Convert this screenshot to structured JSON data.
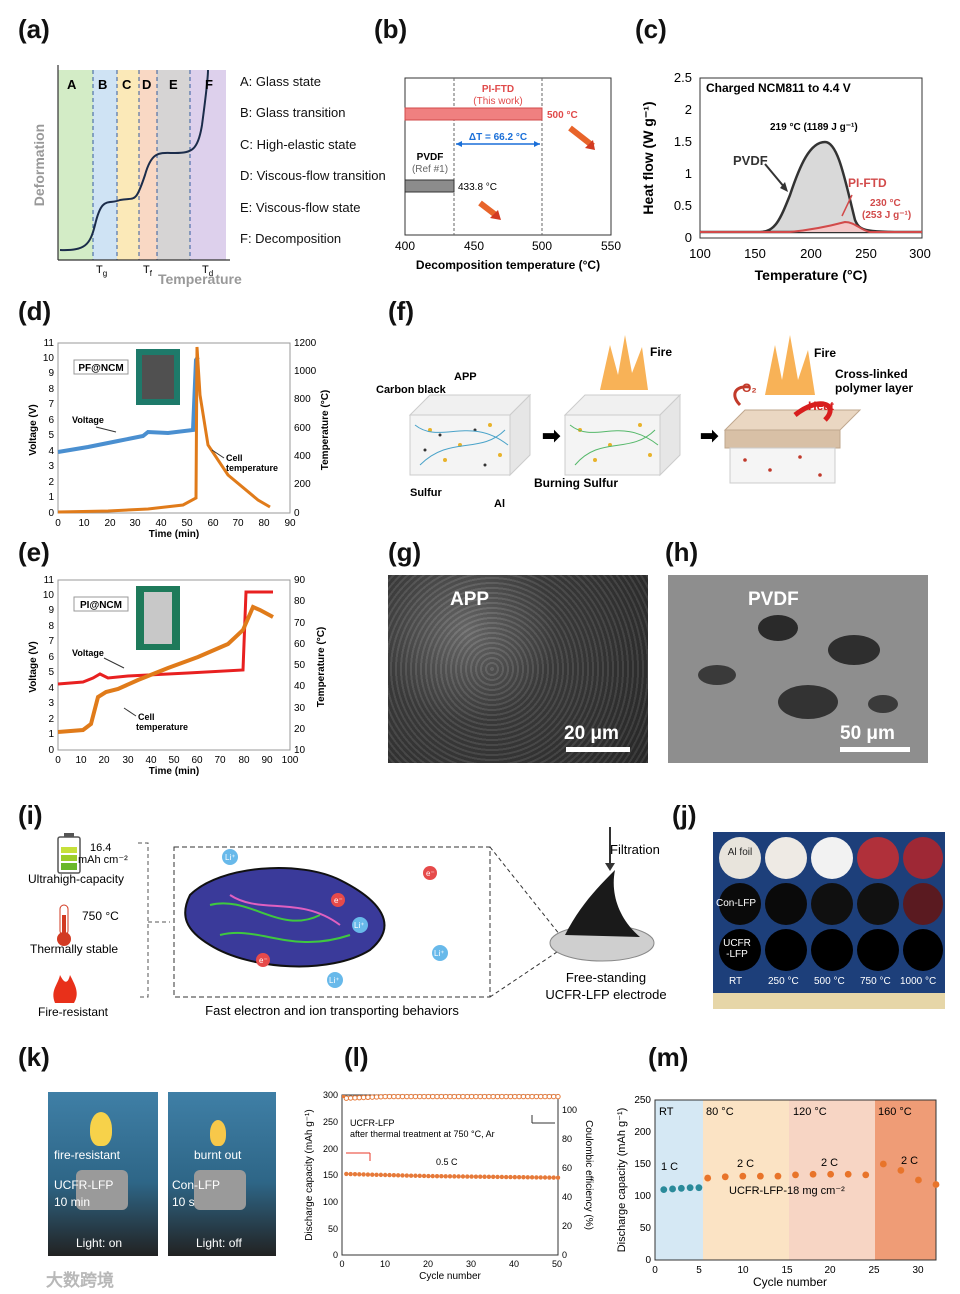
{
  "panels": {
    "a": {
      "label": "(a)",
      "ylabel": "Deformation",
      "xlabel": "Temperature",
      "regions": [
        "A",
        "B",
        "C",
        "D",
        "E",
        "F"
      ],
      "ticks": {
        "tg": "T",
        "tg_sub": "g",
        "tf": "T",
        "tf_sub": "f",
        "td": "T",
        "td_sub": "d"
      },
      "legend": [
        "A: Glass state",
        "B: Glass transition",
        "C: High-elastic state",
        "D: Viscous-flow transition",
        "E: Viscous-flow state",
        "F: Decomposition"
      ]
    },
    "b": {
      "label": "(b)",
      "bar1_title": "PI-FTD",
      "bar1_sub": "(This work)",
      "bar1_value": "500 °C",
      "delta": "ΔT = 66.2 °C",
      "bar2_title": "PVDF",
      "bar2_sub": "(Ref #1)",
      "bar2_value": "433.8 °C",
      "xlabel": "Decomposition temperature (°C)",
      "xticks": [
        "400",
        "450",
        "500",
        "550"
      ]
    },
    "c": {
      "label": "(c)",
      "title": "Charged NCM811 to 4.4 V",
      "peak1": "219 °C (1189 J g⁻¹)",
      "pvdf": "PVDF",
      "pift": "PI-FTD",
      "peak2a": "230 °C",
      "peak2b": "(253 J g⁻¹)",
      "ylabel": "Heat flow (W g⁻¹)",
      "xlabel": "Temperature (°C)",
      "yticks": [
        "0",
        "0.5",
        "1",
        "1.5",
        "2",
        "2.5"
      ],
      "xticks": [
        "100",
        "150",
        "200",
        "250",
        "300"
      ]
    },
    "d": {
      "label": "(d)",
      "tag": "PF@NCM",
      "voltage": "Voltage",
      "cell_a": "Cell",
      "cell_b": "temperature",
      "ylabel": "Voltage (V)",
      "y2label": "Temperature (°C)",
      "xlabel": "Time (min)",
      "yticks": [
        "0",
        "1",
        "2",
        "3",
        "4",
        "5",
        "6",
        "7",
        "8",
        "9",
        "10",
        "11"
      ],
      "y2ticks": [
        "0",
        "200",
        "400",
        "600",
        "800",
        "1000",
        "1200"
      ],
      "xticks": [
        "0",
        "10",
        "20",
        "30",
        "40",
        "50",
        "60",
        "70",
        "80",
        "90"
      ]
    },
    "e": {
      "label": "(e)",
      "tag": "PI@NCM",
      "voltage": "Voltage",
      "cell_a": "Cell",
      "cell_b": "temperature",
      "ylabel": "Voltage (V)",
      "y2label": "Temperature (°C)",
      "xlabel": "Time (min)",
      "yticks": [
        "0",
        "1",
        "2",
        "3",
        "4",
        "5",
        "6",
        "7",
        "8",
        "9",
        "10",
        "11"
      ],
      "y2ticks": [
        "10",
        "20",
        "30",
        "40",
        "50",
        "60",
        "70",
        "80",
        "90"
      ],
      "xticks": [
        "0",
        "10",
        "20",
        "30",
        "40",
        "50",
        "60",
        "70",
        "80",
        "90",
        "100"
      ]
    },
    "f": {
      "label": "(f)",
      "carbon": "Carbon black",
      "app": "APP",
      "sulfur": "Sulfur",
      "al": "Al",
      "fire1": "Fire",
      "burning": "Burning Sulfur",
      "fire2": "Fire",
      "crosslinked_a": "Cross-linked",
      "crosslinked_b": "polymer layer",
      "o2": "O₂",
      "heat": "Heat"
    },
    "g": {
      "label": "(g)",
      "name": "APP",
      "scale": "20 μm"
    },
    "h": {
      "label": "(h)",
      "name": "PVDF",
      "scale": "50 μm"
    },
    "i": {
      "label": "(i)",
      "cap_a": "16.4",
      "cap_b": "mAh cm⁻²",
      "ultra": "Ultrahigh-capacity",
      "temp": "750 °C",
      "thermal": "Thermally stable",
      "fire": "Fire-resistant",
      "fast": "Fast electron and ion transporting behaviors",
      "filtration": "Filtration",
      "free_a": "Free-standing",
      "free_b": "UCFR-LFP electrode",
      "li": "Li⁺",
      "e": "e⁻"
    },
    "j": {
      "label": "(j)",
      "rows": [
        "Al foil",
        "Con-LFP",
        "UCFR -LFP"
      ],
      "cols": [
        "RT",
        "250 °C",
        "500 °C",
        "750 °C",
        "1000 °C"
      ]
    },
    "k": {
      "label": "(k)",
      "left_a": "fire-resistant",
      "left_b": "UCFR-LFP",
      "left_c": "10 min",
      "left_d": "Light: on",
      "right_a": "burnt out",
      "right_b": "Con-LFP",
      "right_c": "10 s",
      "right_d": "Light: off",
      "watermark": "大数跨境"
    },
    "l": {
      "label": "(l)",
      "line1": "UCFR-LFP",
      "line2": "after thermal treatment at 750 °C, Ar",
      "rate": "0.5 C",
      "ylabel": "Discharge capacity (mAh g⁻¹)",
      "y2label": "Coulombic efficiency (%)",
      "xlabel": "Cycle number",
      "yticks": [
        "0",
        "50",
        "100",
        "150",
        "200",
        "250",
        "300"
      ],
      "y2ticks": [
        "0",
        "20",
        "40",
        "60",
        "80",
        "100"
      ],
      "xticks": [
        "0",
        "10",
        "20",
        "30",
        "40",
        "50"
      ]
    },
    "m": {
      "label": "(m)",
      "zones": [
        "RT",
        "80 °C",
        "120 °C",
        "160 °C"
      ],
      "rates": [
        "1 C",
        "2 C",
        "2 C",
        "2 C"
      ],
      "note": "UCFR-LFP-18 mg cm⁻²",
      "ylabel": "Discharge capacity (mAh g⁻¹)",
      "xlabel": "Cycle number",
      "yticks": [
        "0",
        "50",
        "100",
        "150",
        "200",
        "250"
      ],
      "xticks": [
        "0",
        "5",
        "10",
        "15",
        "20",
        "25",
        "30"
      ]
    }
  },
  "chart_data": [
    {
      "type": "bar",
      "panel": "b",
      "categories": [
        "PI-FTD",
        "PVDF"
      ],
      "values": [
        500,
        433.8
      ],
      "xlim": [
        400,
        550
      ],
      "xlabel": "Decomposition temperature (°C)"
    },
    {
      "type": "line",
      "panel": "c",
      "x": [
        100,
        150,
        170,
        190,
        205,
        219,
        230,
        245,
        260,
        300
      ],
      "series": [
        {
          "name": "PVDF",
          "values": [
            0.1,
            0.1,
            0.3,
            0.8,
            1.25,
            1.48,
            1.3,
            0.5,
            0.12,
            0.1
          ]
        },
        {
          "name": "PI-FTD",
          "values": [
            0.1,
            0.1,
            0.1,
            0.12,
            0.15,
            0.2,
            0.23,
            0.18,
            0.12,
            0.1
          ]
        }
      ],
      "xlim": [
        100,
        300
      ],
      "ylim": [
        0,
        2.5
      ]
    },
    {
      "type": "line",
      "panel": "d",
      "x": [
        0,
        10,
        20,
        30,
        35,
        40,
        50,
        53,
        54,
        60,
        70,
        80
      ],
      "series": [
        {
          "name": "Voltage",
          "values": [
            4.3,
            4.6,
            4.9,
            5.2,
            5.4,
            5.4,
            5.6,
            10,
            9.5,
            3.5,
            1.5,
            0.5
          ]
        },
        {
          "name": "Cell temperature",
          "values": [
            0,
            5,
            10,
            20,
            30,
            40,
            70,
            90,
            1000,
            500,
            150,
            20
          ]
        }
      ],
      "xlim": [
        0,
        90
      ],
      "ylim": [
        0,
        11
      ],
      "y2lim": [
        0,
        1200
      ]
    },
    {
      "type": "line",
      "panel": "e",
      "x": [
        0,
        10,
        15,
        18,
        20,
        30,
        40,
        50,
        60,
        70,
        80,
        83,
        90
      ],
      "series": [
        {
          "name": "Voltage",
          "values": [
            4.2,
            4.4,
            4.7,
            4.9,
            4.7,
            4.8,
            4.9,
            5.0,
            5.1,
            5.2,
            5.3,
            10,
            10
          ]
        },
        {
          "name": "Cell temperature",
          "values": [
            18,
            19,
            22,
            33,
            36,
            40,
            46,
            52,
            60,
            66,
            74,
            80,
            72
          ]
        }
      ],
      "xlim": [
        0,
        100
      ],
      "ylim": [
        0,
        11
      ],
      "y2lim": [
        10,
        90
      ]
    },
    {
      "type": "scatter",
      "panel": "l",
      "x": [
        1,
        10,
        20,
        30,
        40,
        50
      ],
      "series": [
        {
          "name": "Discharge capacity",
          "values": [
            152,
            150,
            148,
            147,
            146,
            145
          ]
        },
        {
          "name": "Coulombic efficiency",
          "values": [
            98,
            99,
            99,
            99,
            99,
            99
          ]
        }
      ],
      "xlim": [
        0,
        50
      ],
      "ylim": [
        0,
        300
      ],
      "y2lim": [
        0,
        100
      ]
    },
    {
      "type": "scatter",
      "panel": "m",
      "x": [
        1,
        2,
        3,
        4,
        5,
        6,
        8,
        10,
        12,
        14,
        16,
        18,
        20,
        22,
        24,
        26,
        28,
        30,
        32
      ],
      "values": [
        110,
        111,
        112,
        113,
        113,
        128,
        130,
        131,
        131,
        131,
        133,
        134,
        134,
        134,
        133,
        150,
        140,
        125,
        118
      ],
      "xlim": [
        0,
        32
      ],
      "ylim": [
        0,
        250
      ]
    }
  ]
}
